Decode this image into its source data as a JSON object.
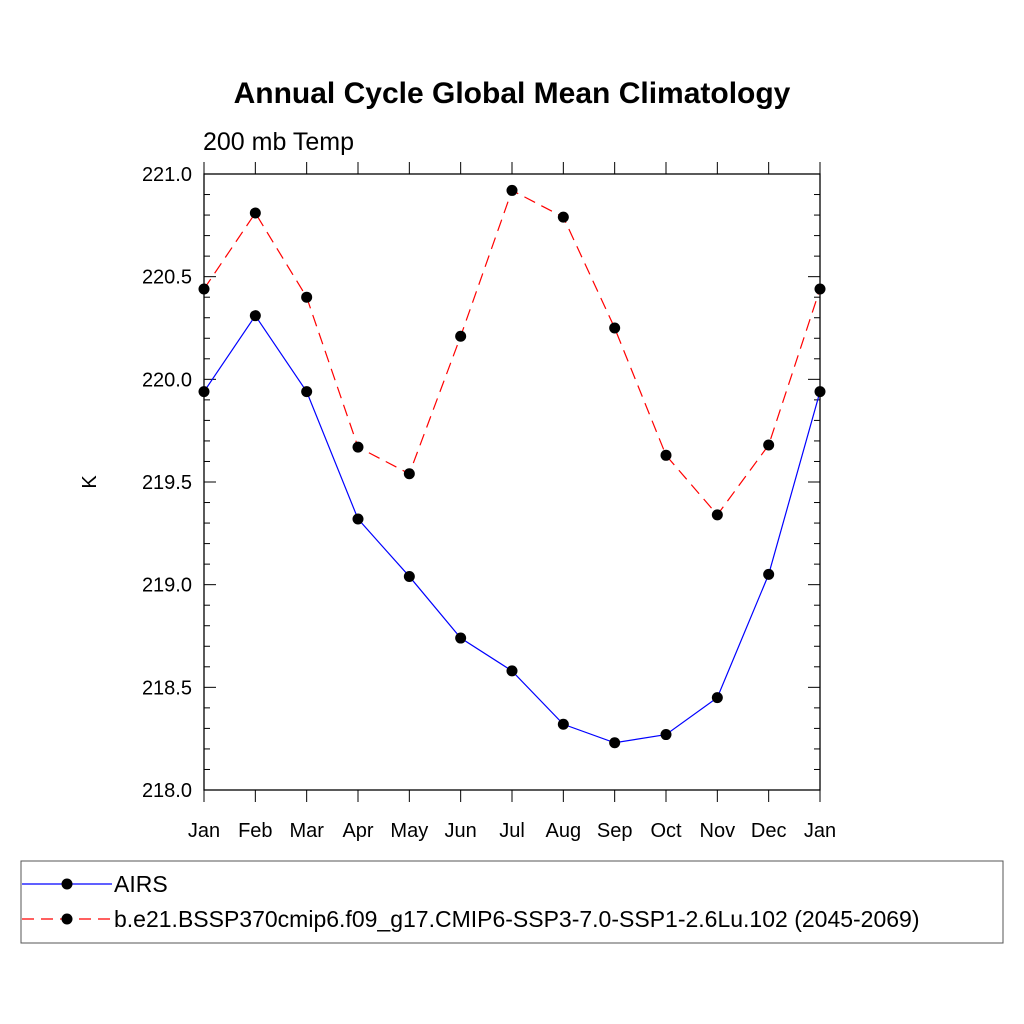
{
  "chart_data": {
    "type": "line",
    "title": "Annual Cycle Global Mean Climatology",
    "subtitle": "200 mb Temp",
    "ylabel": "K",
    "xlabel": "",
    "ylim": [
      218.0,
      221.0
    ],
    "y_ticks": [
      "218.0",
      "218.5",
      "219.0",
      "219.5",
      "220.0",
      "220.5",
      "221.0"
    ],
    "categories": [
      "Jan",
      "Feb",
      "Mar",
      "Apr",
      "May",
      "Jun",
      "Jul",
      "Aug",
      "Sep",
      "Oct",
      "Nov",
      "Dec",
      "Jan"
    ],
    "legend_position": "bottom",
    "series": [
      {
        "name": "AIRS",
        "color": "#0000ff",
        "line_style": "solid",
        "marker": "filled-circle",
        "values": [
          219.94,
          220.31,
          219.94,
          219.32,
          219.04,
          218.74,
          218.58,
          218.32,
          218.23,
          218.27,
          218.45,
          219.05,
          219.94
        ]
      },
      {
        "name": "b.e21.BSSP370cmip6.f09_g17.CMIP6-SSP3-7.0-SSP1-2.6Lu.102 (2045-2069)",
        "color": "#ff0000",
        "line_style": "dashed",
        "marker": "filled-circle",
        "values": [
          220.44,
          220.81,
          220.4,
          219.67,
          219.54,
          220.21,
          220.92,
          220.79,
          220.25,
          219.63,
          219.34,
          219.68,
          220.44
        ]
      }
    ]
  }
}
